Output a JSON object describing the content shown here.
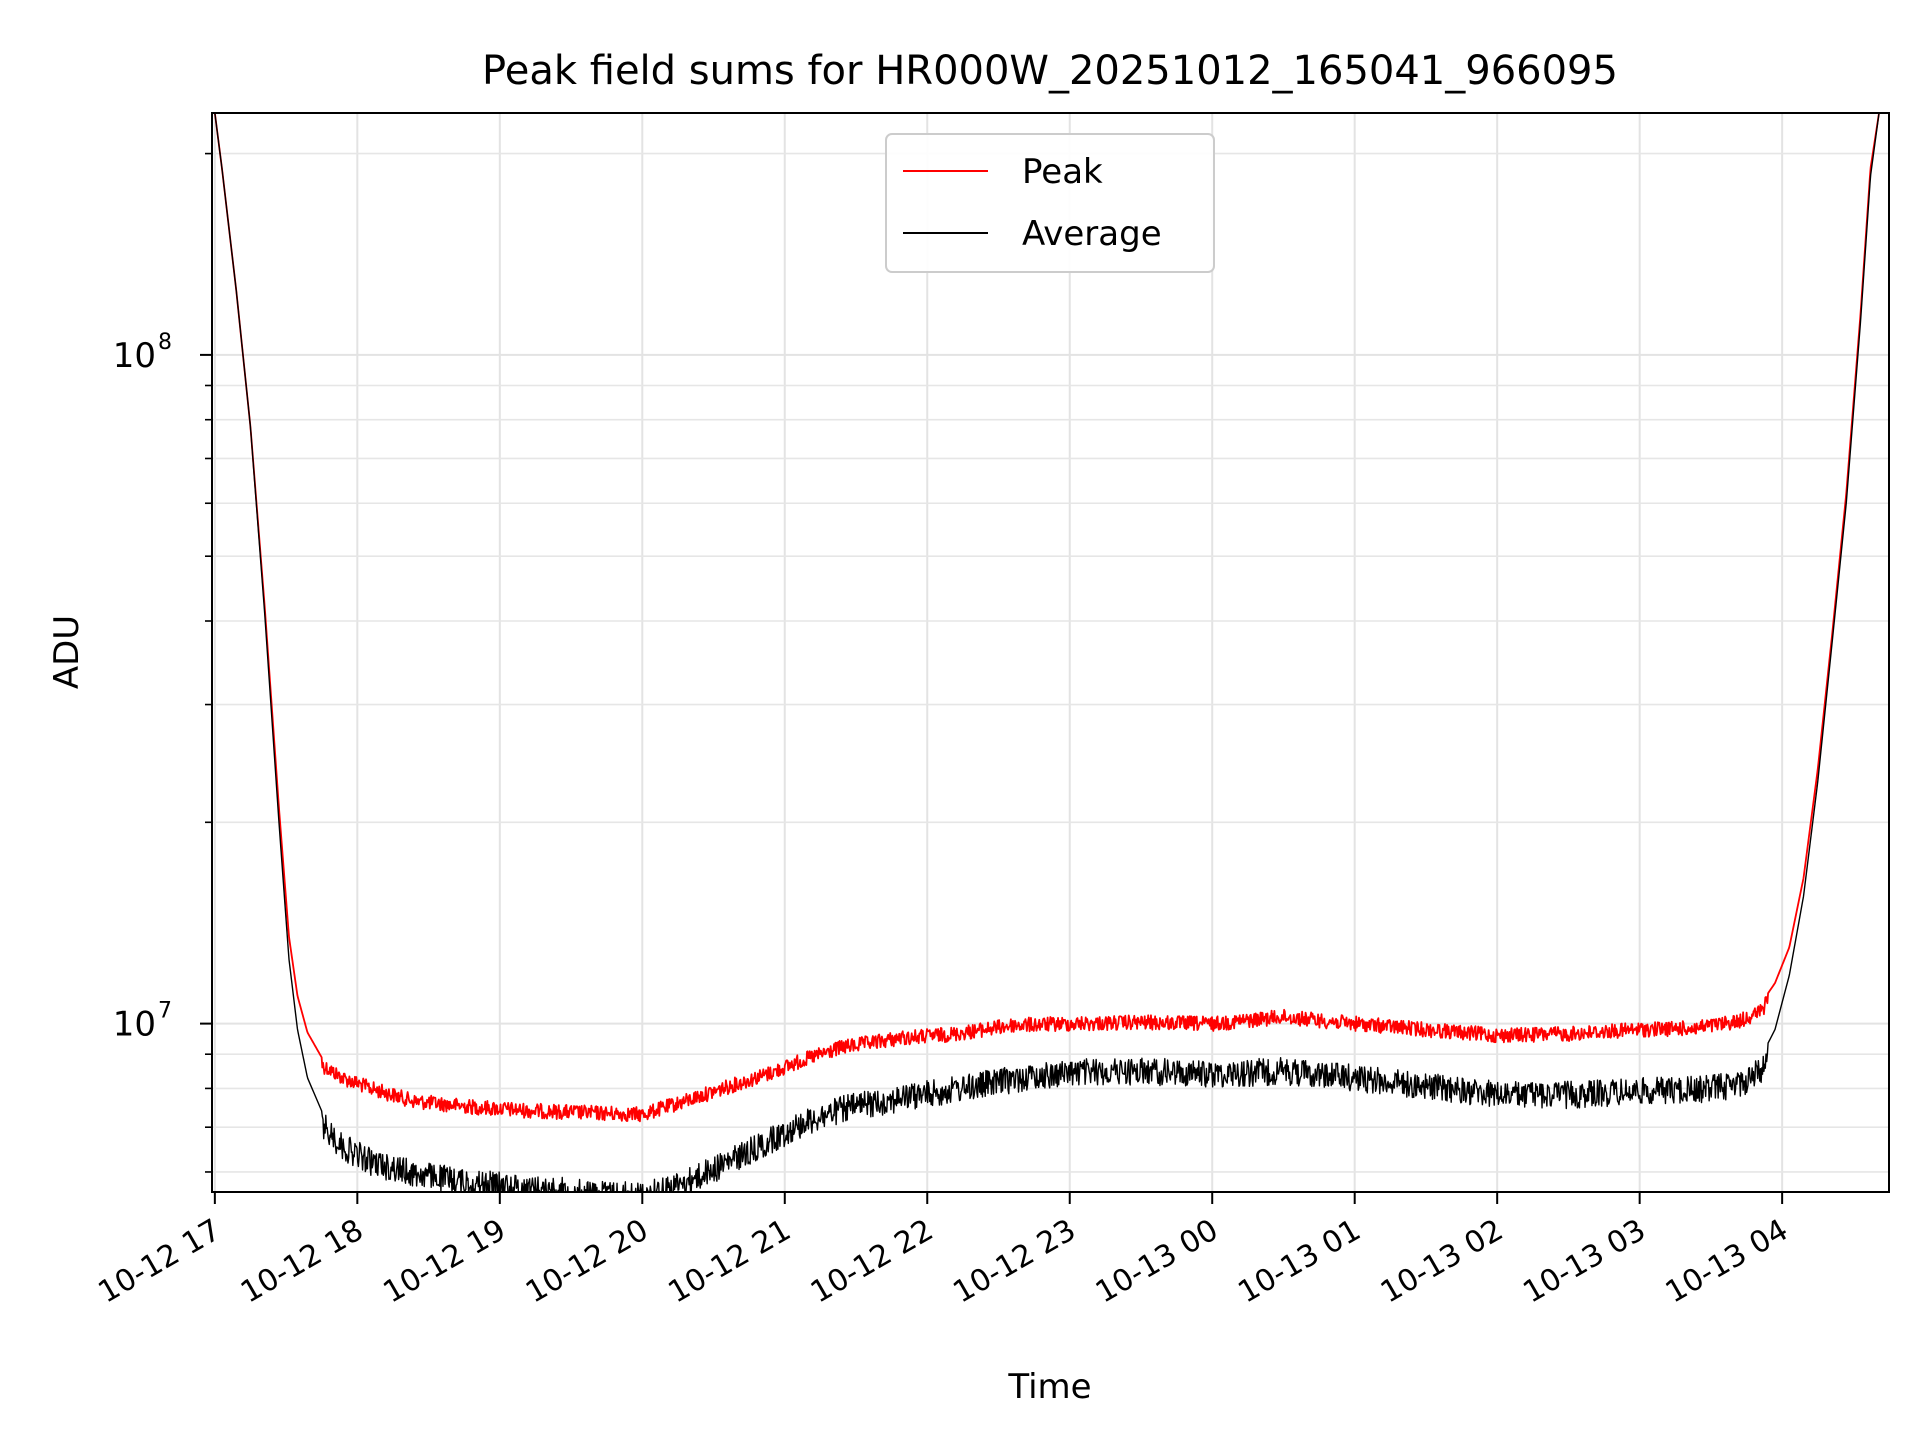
{
  "chart_data": {
    "type": "line",
    "title": "Peak field sums for HR000W_20251012_165041_966095",
    "xlabel": "Time",
    "ylabel": "ADU",
    "yscale": "log",
    "ylim": [
      5600000,
      230000000
    ],
    "xlim_hours": [
      -0.02,
      11.75
    ],
    "x_ticks": [
      {
        "h": 0,
        "label": "10-12 17"
      },
      {
        "h": 1,
        "label": "10-12 18"
      },
      {
        "h": 2,
        "label": "10-12 19"
      },
      {
        "h": 3,
        "label": "10-12 20"
      },
      {
        "h": 4,
        "label": "10-12 21"
      },
      {
        "h": 5,
        "label": "10-12 22"
      },
      {
        "h": 6,
        "label": "10-12 23"
      },
      {
        "h": 7,
        "label": "10-13 00"
      },
      {
        "h": 8,
        "label": "10-13 01"
      },
      {
        "h": 9,
        "label": "10-13 02"
      },
      {
        "h": 10,
        "label": "10-13 03"
      },
      {
        "h": 11,
        "label": "10-13 04"
      }
    ],
    "y_major_ticks": [
      {
        "value": 10000000,
        "base": "10",
        "exp": "7"
      },
      {
        "value": 100000000,
        "base": "10",
        "exp": "8"
      }
    ],
    "grid": true,
    "legend": {
      "position": "top-center",
      "entries": [
        "Peak",
        "Average"
      ]
    },
    "series": [
      {
        "name": "Peak",
        "color": "#ff0000",
        "hours": [
          0.0,
          0.05,
          0.15,
          0.25,
          0.35,
          0.45,
          0.52,
          0.58,
          0.65,
          0.75,
          0.9,
          1.1,
          1.4,
          1.8,
          2.2,
          2.6,
          3.0,
          3.3,
          3.6,
          3.9,
          4.1,
          4.4,
          4.8,
          5.2,
          5.6,
          6.0,
          6.5,
          7.0,
          7.5,
          7.9,
          8.5,
          9.0,
          9.5,
          10.0,
          10.4,
          10.7,
          10.85,
          10.95,
          11.05,
          11.15,
          11.25,
          11.35,
          11.45,
          11.55,
          11.62,
          11.68
        ],
        "values": [
          230000000,
          190000000,
          125000000,
          78000000,
          42000000,
          21000000,
          13500000,
          11000000,
          9700000,
          8900000,
          8500000,
          8200000,
          7850000,
          7700000,
          7600000,
          7550000,
          7500000,
          7850000,
          8250000,
          8650000,
          9000000,
          9450000,
          9750000,
          9900000,
          10200000,
          10250000,
          10300000,
          10250000,
          10500000,
          10300000,
          10050000,
          9850000,
          9900000,
          10050000,
          10100000,
          10350000,
          10700000,
          11500000,
          13000000,
          16500000,
          24000000,
          38000000,
          62000000,
          115000000,
          190000000,
          230000000
        ]
      },
      {
        "name": "Average",
        "color": "#000000",
        "hours": [
          0.0,
          0.05,
          0.15,
          0.25,
          0.35,
          0.45,
          0.52,
          0.58,
          0.65,
          0.75,
          0.9,
          1.1,
          1.4,
          1.8,
          2.2,
          2.6,
          3.0,
          3.3,
          3.6,
          3.9,
          4.1,
          4.4,
          4.8,
          5.2,
          5.6,
          6.0,
          6.5,
          7.0,
          7.5,
          7.9,
          8.5,
          9.0,
          9.5,
          10.0,
          10.4,
          10.7,
          10.85,
          10.95,
          11.05,
          11.15,
          11.25,
          11.35,
          11.45,
          11.55,
          11.62,
          11.68
        ],
        "values": [
          230000000,
          190000000,
          125000000,
          78000000,
          41000000,
          20000000,
          12500000,
          9800000,
          8300000,
          7400000,
          6850000,
          6500000,
          6250000,
          6050000,
          5950000,
          5850000,
          5800000,
          6050000,
          6500000,
          7000000,
          7400000,
          7800000,
          8100000,
          8350000,
          8650000,
          8850000,
          8900000,
          8800000,
          8900000,
          8750000,
          8450000,
          8200000,
          8200000,
          8300000,
          8350000,
          8500000,
          8900000,
          9800000,
          11800000,
          15500000,
          23000000,
          37000000,
          60000000,
          112000000,
          185000000,
          230000000
        ]
      }
    ]
  }
}
